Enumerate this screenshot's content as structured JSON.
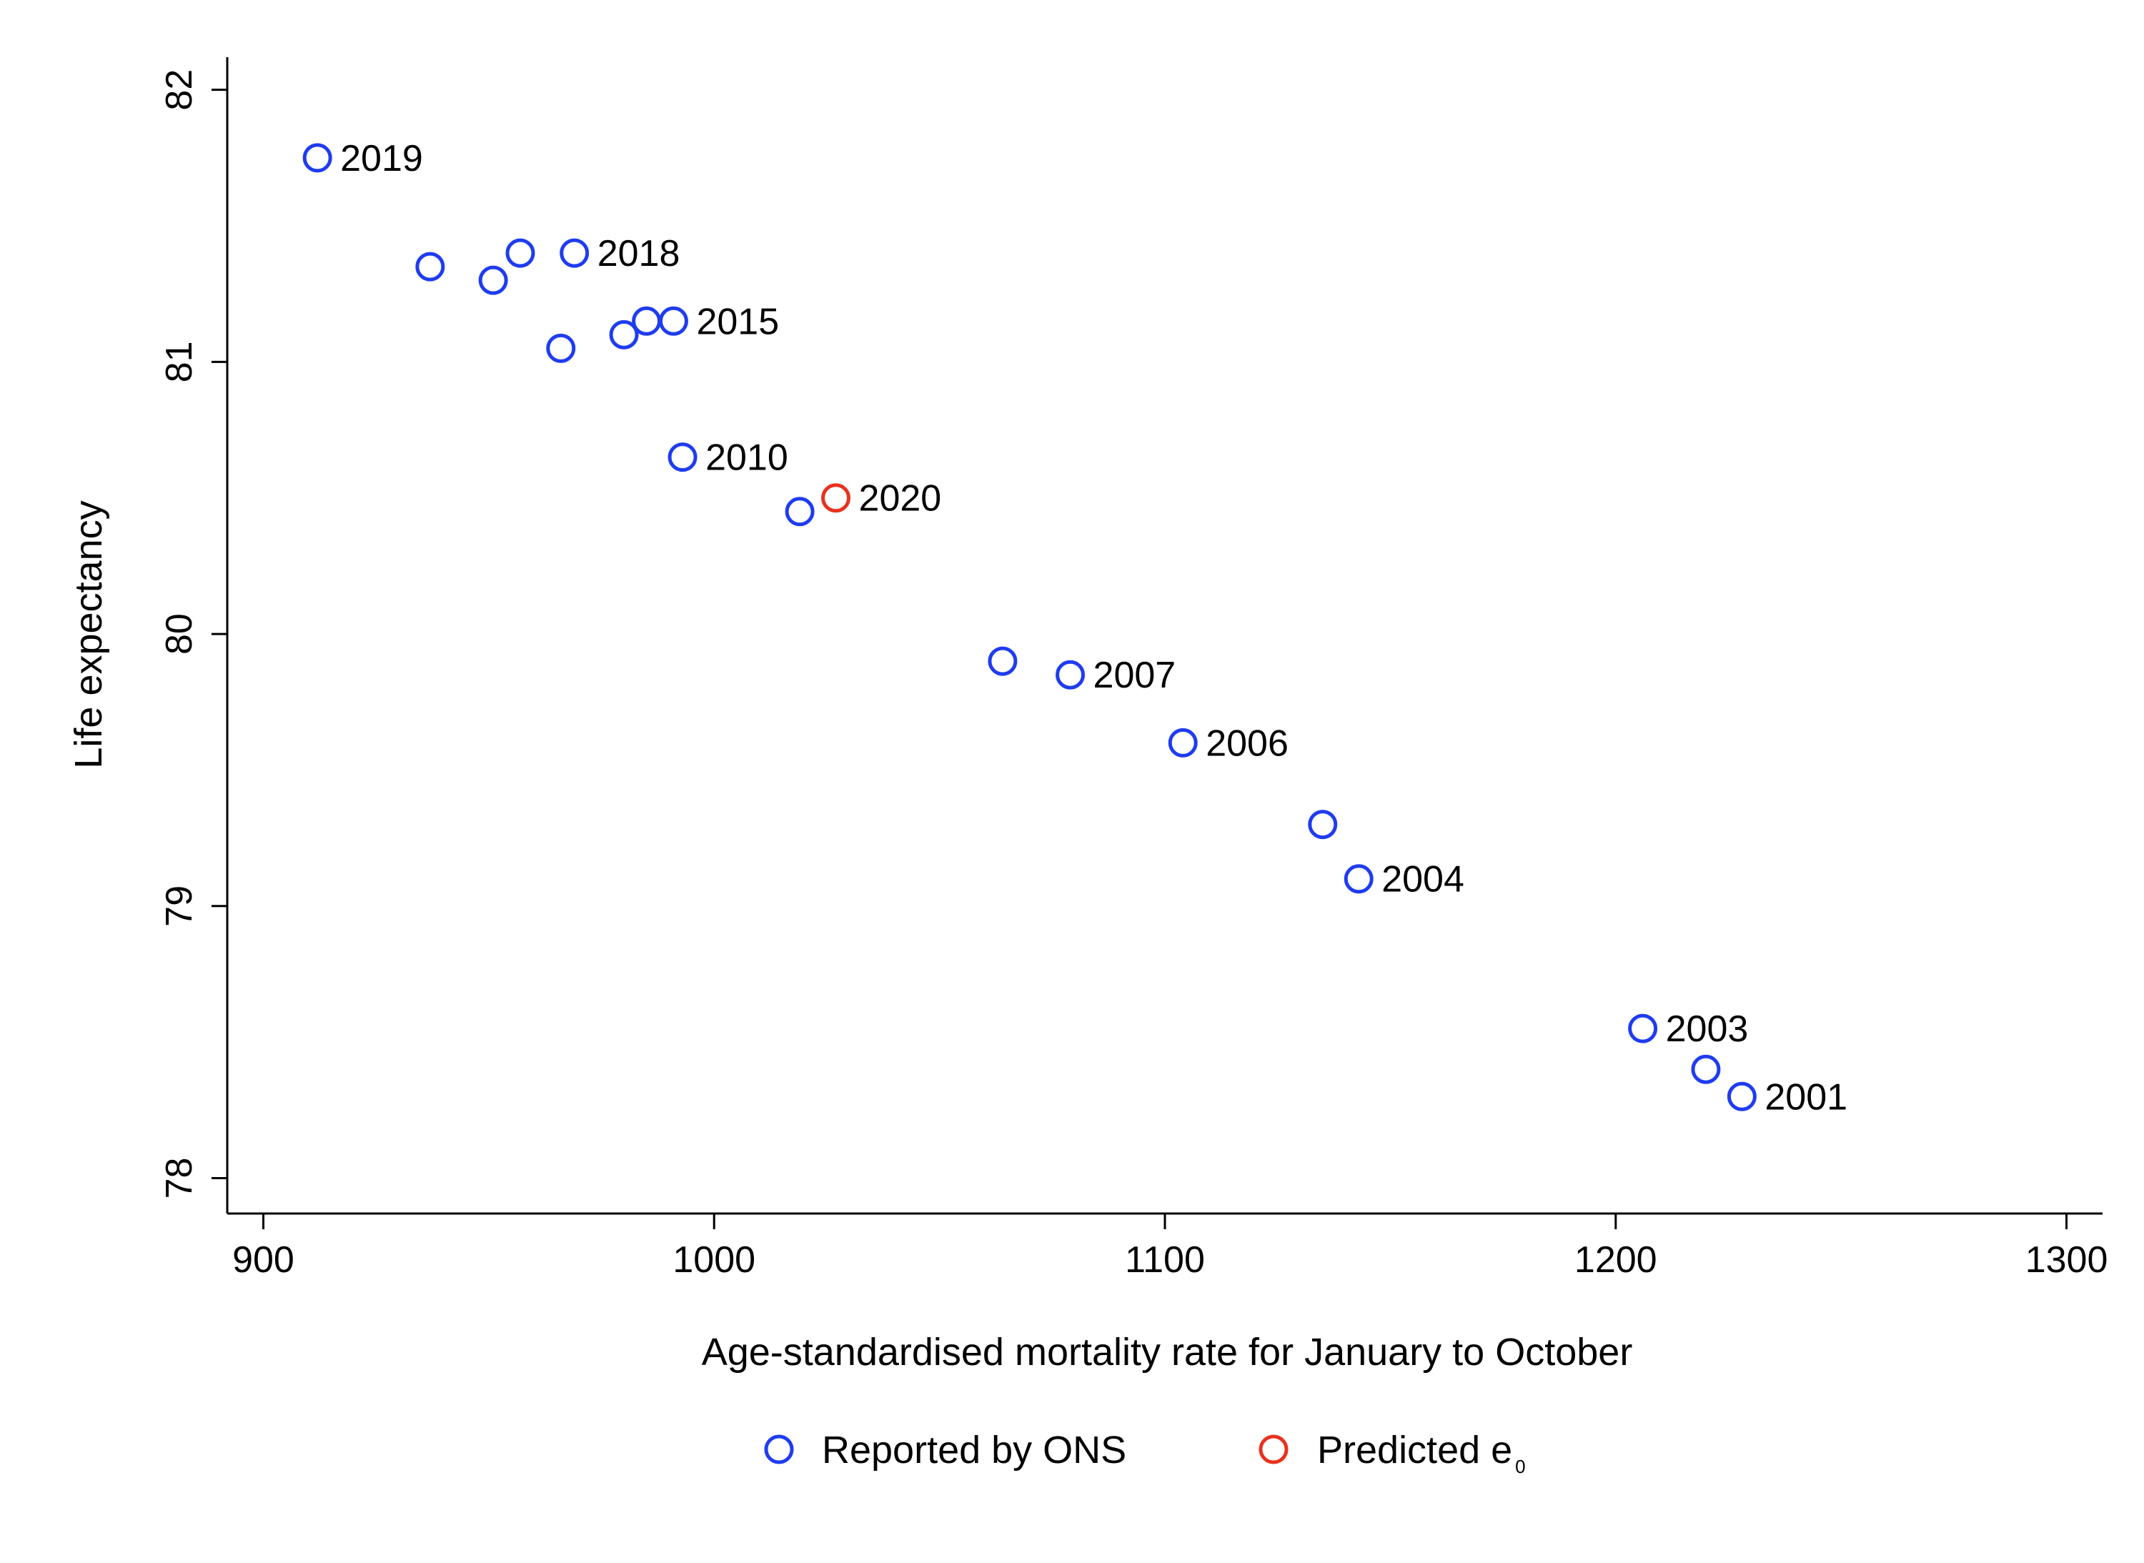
{
  "chart_data": {
    "type": "scatter",
    "xlabel": "Age-standardised mortality rate for January to October",
    "ylabel": "Life expectancy",
    "xlim": [
      892,
      1308
    ],
    "ylim": [
      77.87,
      82.12
    ],
    "xticks": [
      900,
      1000,
      1100,
      1200,
      1300
    ],
    "xtick_labels": [
      "900",
      "1000",
      "1100",
      "1200",
      "1300"
    ],
    "yticks": [
      78,
      79,
      80,
      81,
      82
    ],
    "ytick_labels": [
      "78",
      "79",
      "80",
      "81",
      "82"
    ],
    "grid": false,
    "legend_position": "bottom",
    "series": [
      {
        "name": "Reported by ONS",
        "color": "#1f3cf0",
        "marker": "hollow-circle",
        "points": [
          {
            "x": 912,
            "y": 81.75,
            "label": "2019"
          },
          {
            "x": 937,
            "y": 81.35,
            "label": ""
          },
          {
            "x": 951,
            "y": 81.3,
            "label": ""
          },
          {
            "x": 957,
            "y": 81.4,
            "label": ""
          },
          {
            "x": 969,
            "y": 81.4,
            "label": "2018"
          },
          {
            "x": 966,
            "y": 81.05,
            "label": ""
          },
          {
            "x": 980,
            "y": 81.1,
            "label": ""
          },
          {
            "x": 985,
            "y": 81.15,
            "label": ""
          },
          {
            "x": 991,
            "y": 81.15,
            "label": "2015"
          },
          {
            "x": 993,
            "y": 80.65,
            "label": "2010"
          },
          {
            "x": 1019,
            "y": 80.45,
            "label": ""
          },
          {
            "x": 1064,
            "y": 79.9,
            "label": ""
          },
          {
            "x": 1079,
            "y": 79.85,
            "label": "2007"
          },
          {
            "x": 1104,
            "y": 79.6,
            "label": "2006"
          },
          {
            "x": 1135,
            "y": 79.3,
            "label": ""
          },
          {
            "x": 1143,
            "y": 79.1,
            "label": "2004"
          },
          {
            "x": 1206,
            "y": 78.55,
            "label": "2003"
          },
          {
            "x": 1220,
            "y": 78.4,
            "label": ""
          },
          {
            "x": 1228,
            "y": 78.3,
            "label": "2001"
          }
        ]
      },
      {
        "name": "Predicted e",
        "name_subscript": "0",
        "color": "#e8321e",
        "marker": "hollow-circle",
        "points": [
          {
            "x": 1027,
            "y": 80.5,
            "label": "2020"
          }
        ]
      }
    ]
  }
}
